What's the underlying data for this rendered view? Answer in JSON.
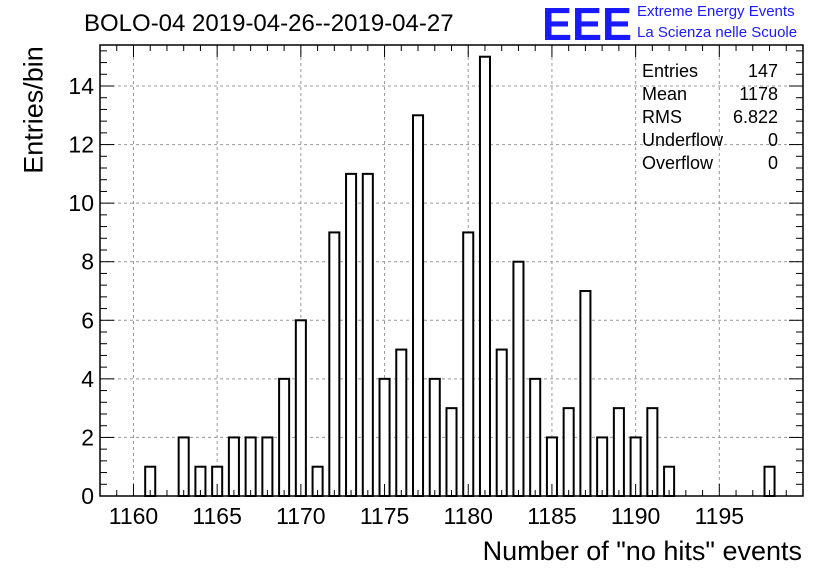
{
  "chart_data": {
    "type": "bar",
    "title": "BOLO-04 2019-04-26--2019-04-27",
    "xlabel": "Number of \"no hits\" events",
    "ylabel": "Entries/bin",
    "xlim": [
      1158,
      1200
    ],
    "ylim": [
      0,
      15.4
    ],
    "xticks": [
      1160,
      1165,
      1170,
      1175,
      1180,
      1185,
      1190,
      1195
    ],
    "yticks": [
      0,
      2,
      4,
      6,
      8,
      10,
      12,
      14
    ],
    "grid": true,
    "bins": [
      {
        "x": 1161,
        "y": 1
      },
      {
        "x": 1163,
        "y": 2
      },
      {
        "x": 1164,
        "y": 1
      },
      {
        "x": 1165,
        "y": 1
      },
      {
        "x": 1166,
        "y": 2
      },
      {
        "x": 1167,
        "y": 2
      },
      {
        "x": 1168,
        "y": 2
      },
      {
        "x": 1169,
        "y": 4
      },
      {
        "x": 1170,
        "y": 6
      },
      {
        "x": 1171,
        "y": 1
      },
      {
        "x": 1172,
        "y": 9
      },
      {
        "x": 1173,
        "y": 11
      },
      {
        "x": 1174,
        "y": 11
      },
      {
        "x": 1175,
        "y": 4
      },
      {
        "x": 1176,
        "y": 5
      },
      {
        "x": 1177,
        "y": 13
      },
      {
        "x": 1178,
        "y": 4
      },
      {
        "x": 1179,
        "y": 3
      },
      {
        "x": 1180,
        "y": 9
      },
      {
        "x": 1181,
        "y": 15
      },
      {
        "x": 1182,
        "y": 5
      },
      {
        "x": 1183,
        "y": 8
      },
      {
        "x": 1184,
        "y": 4
      },
      {
        "x": 1185,
        "y": 2
      },
      {
        "x": 1186,
        "y": 3
      },
      {
        "x": 1187,
        "y": 7
      },
      {
        "x": 1188,
        "y": 2
      },
      {
        "x": 1189,
        "y": 3
      },
      {
        "x": 1190,
        "y": 2
      },
      {
        "x": 1191,
        "y": 3
      },
      {
        "x": 1192,
        "y": 1
      },
      {
        "x": 1198,
        "y": 1
      }
    ],
    "stats": [
      {
        "label": "Entries",
        "value": "147"
      },
      {
        "label": "Mean",
        "value": "1178"
      },
      {
        "label": "RMS",
        "value": "6.822"
      },
      {
        "label": "Underflow",
        "value": "0"
      },
      {
        "label": "Overflow",
        "value": "0"
      }
    ],
    "colors": {
      "bar_fill": "#ffffff",
      "bar_stroke": "#000000",
      "grid": "#999999",
      "logo": "#1a1aff"
    }
  },
  "logo": {
    "mark": "EEE",
    "line1": "Extreme Energy Events",
    "line2": "La Scienza nelle Scuole"
  }
}
